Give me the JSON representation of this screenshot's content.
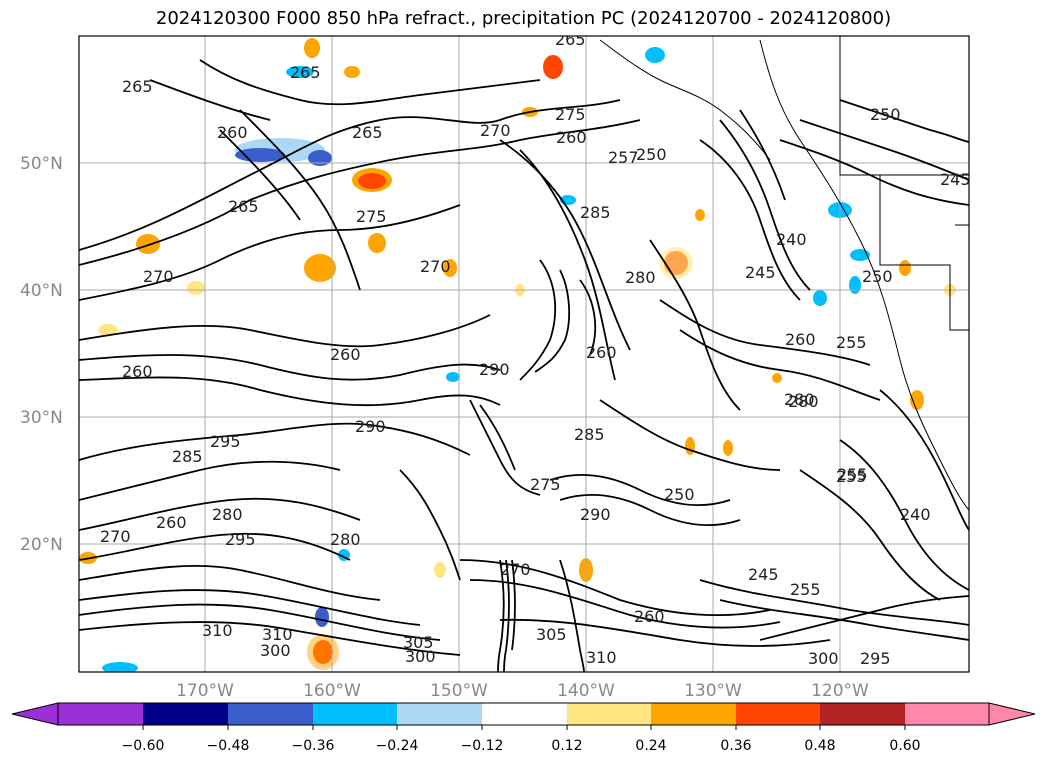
{
  "title": "2024120300 F000 850 hPa refract., precipitation PC (2024120700 - 2024120800)",
  "lat_labels": [
    "50°N",
    "40°N",
    "30°N",
    "20°N"
  ],
  "lon_labels": [
    "170°W",
    "160°W",
    "150°W",
    "140°W",
    "130°W",
    "120°W"
  ],
  "colorbar": {
    "ticks": [
      "−0.60",
      "−0.48",
      "−0.36",
      "−0.24",
      "−0.12",
      "0.12",
      "0.24",
      "0.36",
      "0.48",
      "0.60"
    ],
    "colors": [
      "#9b30d9",
      "#00008b",
      "#3a5fcd",
      "#00bfff",
      "#add8f5",
      "#ffffff",
      "#ffe680",
      "#ffa500",
      "#ff4500",
      "#b22222",
      "#ff88aa"
    ]
  },
  "contour_labels": [
    "265",
    "265",
    "265",
    "260",
    "270",
    "265",
    "275",
    "260",
    "257",
    "250",
    "250",
    "250",
    "245",
    "265",
    "270",
    "275",
    "285",
    "270",
    "280",
    "290",
    "260",
    "290",
    "280",
    "295",
    "285",
    "280",
    "295",
    "270",
    "260",
    "260",
    "285",
    "275",
    "290",
    "280",
    "240",
    "245",
    "250",
    "260",
    "255",
    "280",
    "255",
    "240",
    "245",
    "255",
    "260",
    "305",
    "300",
    "310",
    "310",
    "300",
    "300",
    "295",
    "310",
    "305",
    "270",
    "255",
    "260"
  ]
}
